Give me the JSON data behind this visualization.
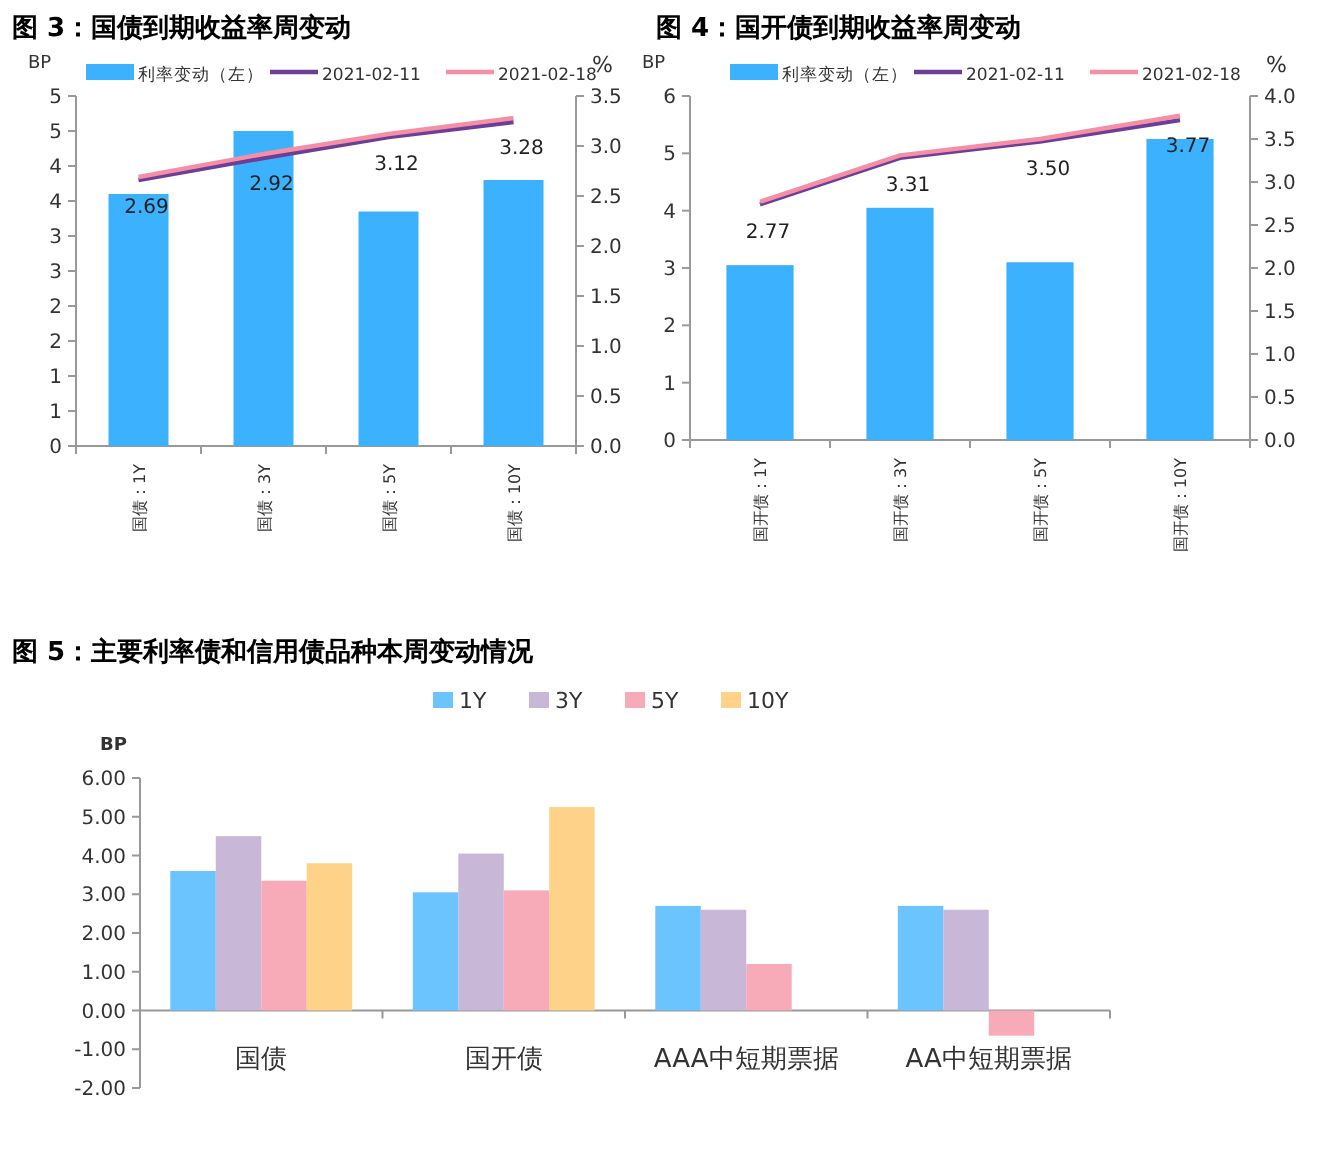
{
  "chart_data": [
    {
      "type": "bar",
      "title": "图 3：国债到期收益率周变动",
      "ylabel": "BP",
      "y2label": "%",
      "legend": "top",
      "grid": false,
      "categories": [
        "国债：1Y",
        "国债：3Y",
        "国债：5Y",
        "国债：10Y"
      ],
      "ylim": [
        0,
        5
      ],
      "yticks": [
        0,
        {
          "value": 0.5,
          "label": "1"
        },
        1,
        {
          "value": 1.5,
          "label": "2"
        },
        2,
        {
          "value": 2.5,
          "label": "3"
        },
        3,
        {
          "value": 3.5,
          "label": "4"
        },
        4,
        {
          "value": 4.5,
          "label": "5"
        },
        5
      ],
      "y2lim": [
        0,
        3.5
      ],
      "y2ticks": [
        {
          "value": 0,
          "label": "0.0"
        },
        0.5,
        {
          "value": 1,
          "label": "1.0"
        },
        1.5,
        {
          "value": 2,
          "label": "2.0"
        },
        2.5,
        {
          "value": 3,
          "label": "3.0"
        },
        3.5
      ],
      "series": [
        {
          "name": "利率变动（左）",
          "type": "bar",
          "color": "#3cb1fd",
          "values": [
            3.6,
            4.5,
            3.35,
            3.8
          ]
        },
        {
          "name": "2021-02-11",
          "type": "line",
          "axis": "y2",
          "color": "#6b3f98",
          "values": [
            2.66,
            2.88,
            3.09,
            3.24
          ]
        },
        {
          "name": "2021-02-18",
          "type": "line",
          "axis": "y2",
          "color": "#f68fa6",
          "values": [
            2.69,
            2.92,
            3.12,
            3.28
          ],
          "value_labels": [
            "2.69",
            "2.92",
            "3.12",
            "3.28"
          ]
        }
      ]
    },
    {
      "type": "bar",
      "title": "图 4：国开债到期收益率周变动",
      "ylabel": "BP",
      "y2label": "%",
      "legend": "top",
      "grid": false,
      "categories": [
        "国开债：1Y",
        "国开债：3Y",
        "国开债：5Y",
        "国开债：10Y"
      ],
      "ylim": [
        0,
        6
      ],
      "yticks": [
        0,
        1,
        2,
        3,
        4,
        5,
        6
      ],
      "y2lim": [
        0,
        4
      ],
      "y2ticks": [
        {
          "value": 0,
          "label": "0.0"
        },
        0.5,
        {
          "value": 1,
          "label": "1.0"
        },
        1.5,
        {
          "value": 2,
          "label": "2.0"
        },
        2.5,
        {
          "value": 3,
          "label": "3.0"
        },
        3.5,
        {
          "value": 4,
          "label": "4.0"
        }
      ],
      "series": [
        {
          "name": "利率变动（左）",
          "type": "bar",
          "color": "#3cb1fd",
          "values": [
            3.05,
            4.05,
            3.1,
            5.25
          ]
        },
        {
          "name": "2021-02-11",
          "type": "line",
          "axis": "y2",
          "color": "#6b3f98",
          "values": [
            2.74,
            3.28,
            3.47,
            3.72
          ]
        },
        {
          "name": "2021-02-18",
          "type": "line",
          "axis": "y2",
          "color": "#f68fa6",
          "values": [
            2.77,
            3.31,
            3.5,
            3.77
          ],
          "value_labels": [
            "2.77",
            "3.31",
            "3.50",
            "3.77"
          ]
        }
      ]
    },
    {
      "type": "bar",
      "title": "图 5：主要利率债和信用债品种本周变动情况",
      "ylabel": "BP",
      "legend": "top",
      "grid": false,
      "categories": [
        "国债",
        "国开债",
        "AAA中短期票据",
        "AA中短期票据"
      ],
      "ylim": [
        -2,
        6
      ],
      "yticks": [
        {
          "value": -2,
          "label": "-2.00"
        },
        {
          "value": -1,
          "label": "-1.00"
        },
        {
          "value": 0,
          "label": "0.00"
        },
        {
          "value": 1,
          "label": "1.00"
        },
        {
          "value": 2,
          "label": "2.00"
        },
        {
          "value": 3,
          "label": "3.00"
        },
        {
          "value": 4,
          "label": "4.00"
        },
        {
          "value": 5,
          "label": "5.00"
        },
        {
          "value": 6,
          "label": "6.00"
        }
      ],
      "series": [
        {
          "name": "1Y",
          "color": "#6cc4ff",
          "values": [
            3.6,
            3.05,
            2.7,
            2.7
          ]
        },
        {
          "name": "3Y",
          "color": "#c9b7d8",
          "values": [
            4.5,
            4.05,
            2.6,
            2.6
          ]
        },
        {
          "name": "5Y",
          "color": "#f7abb9",
          "values": [
            3.35,
            3.1,
            1.2,
            -0.65
          ]
        },
        {
          "name": "10Y",
          "color": "#ffd28a",
          "values": [
            3.8,
            5.25,
            null,
            null
          ]
        }
      ]
    }
  ]
}
